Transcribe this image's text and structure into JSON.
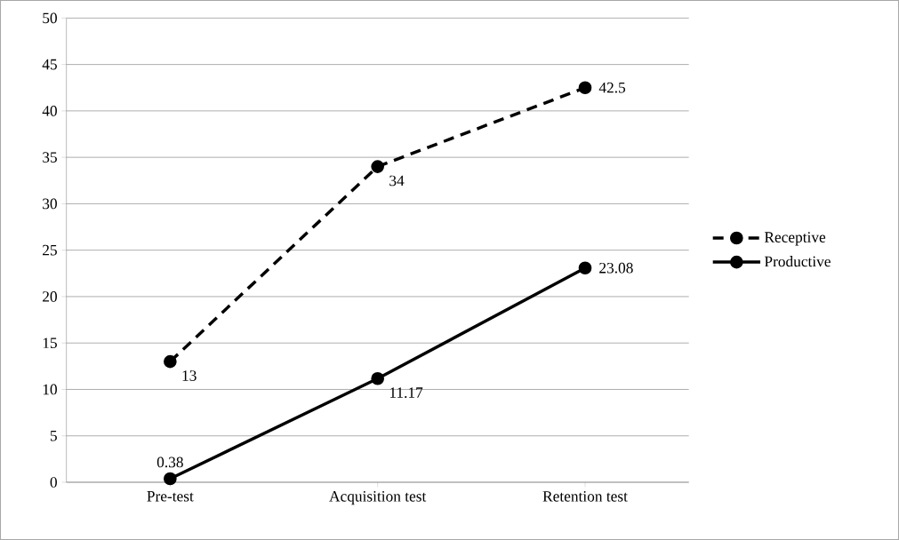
{
  "chart_data": {
    "type": "line",
    "categories": [
      "Pre-test",
      "Acquisition test",
      "Retention test"
    ],
    "series": [
      {
        "name": "Receptive",
        "color": "#000000",
        "line_style": "dashed",
        "values": [
          13,
          34,
          42.5
        ]
      },
      {
        "name": "Productive",
        "color": "#000000",
        "line_style": "solid",
        "values": [
          0.38,
          11.17,
          23.08
        ]
      }
    ],
    "ylim": [
      0,
      50
    ],
    "yticks": [
      0,
      5,
      10,
      15,
      20,
      25,
      30,
      35,
      40,
      45,
      50
    ],
    "grid": "y",
    "legend": "right",
    "marker": "circle",
    "data_labels": true
  }
}
